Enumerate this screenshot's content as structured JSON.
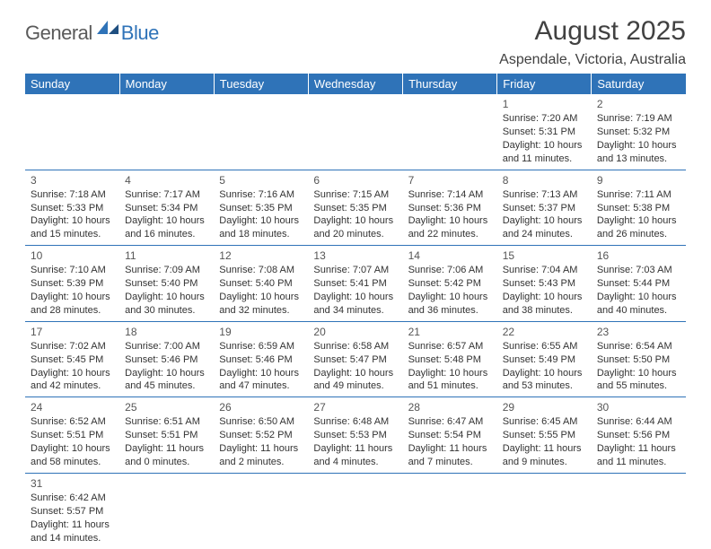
{
  "brand": {
    "word1": "General",
    "word2": "Blue",
    "color1": "#5a5a5a",
    "color2": "#2f73b8"
  },
  "title": "August 2025",
  "location": "Aspendale, Victoria, Australia",
  "colors": {
    "header_bg": "#2f73b8",
    "header_fg": "#ffffff",
    "rule": "#2f73b8",
    "text": "#333333"
  },
  "weekdays": [
    "Sunday",
    "Monday",
    "Tuesday",
    "Wednesday",
    "Thursday",
    "Friday",
    "Saturday"
  ],
  "weeks": [
    [
      null,
      null,
      null,
      null,
      null,
      {
        "n": "1",
        "sr": "Sunrise: 7:20 AM",
        "ss": "Sunset: 5:31 PM",
        "d1": "Daylight: 10 hours",
        "d2": "and 11 minutes."
      },
      {
        "n": "2",
        "sr": "Sunrise: 7:19 AM",
        "ss": "Sunset: 5:32 PM",
        "d1": "Daylight: 10 hours",
        "d2": "and 13 minutes."
      }
    ],
    [
      {
        "n": "3",
        "sr": "Sunrise: 7:18 AM",
        "ss": "Sunset: 5:33 PM",
        "d1": "Daylight: 10 hours",
        "d2": "and 15 minutes."
      },
      {
        "n": "4",
        "sr": "Sunrise: 7:17 AM",
        "ss": "Sunset: 5:34 PM",
        "d1": "Daylight: 10 hours",
        "d2": "and 16 minutes."
      },
      {
        "n": "5",
        "sr": "Sunrise: 7:16 AM",
        "ss": "Sunset: 5:35 PM",
        "d1": "Daylight: 10 hours",
        "d2": "and 18 minutes."
      },
      {
        "n": "6",
        "sr": "Sunrise: 7:15 AM",
        "ss": "Sunset: 5:35 PM",
        "d1": "Daylight: 10 hours",
        "d2": "and 20 minutes."
      },
      {
        "n": "7",
        "sr": "Sunrise: 7:14 AM",
        "ss": "Sunset: 5:36 PM",
        "d1": "Daylight: 10 hours",
        "d2": "and 22 minutes."
      },
      {
        "n": "8",
        "sr": "Sunrise: 7:13 AM",
        "ss": "Sunset: 5:37 PM",
        "d1": "Daylight: 10 hours",
        "d2": "and 24 minutes."
      },
      {
        "n": "9",
        "sr": "Sunrise: 7:11 AM",
        "ss": "Sunset: 5:38 PM",
        "d1": "Daylight: 10 hours",
        "d2": "and 26 minutes."
      }
    ],
    [
      {
        "n": "10",
        "sr": "Sunrise: 7:10 AM",
        "ss": "Sunset: 5:39 PM",
        "d1": "Daylight: 10 hours",
        "d2": "and 28 minutes."
      },
      {
        "n": "11",
        "sr": "Sunrise: 7:09 AM",
        "ss": "Sunset: 5:40 PM",
        "d1": "Daylight: 10 hours",
        "d2": "and 30 minutes."
      },
      {
        "n": "12",
        "sr": "Sunrise: 7:08 AM",
        "ss": "Sunset: 5:40 PM",
        "d1": "Daylight: 10 hours",
        "d2": "and 32 minutes."
      },
      {
        "n": "13",
        "sr": "Sunrise: 7:07 AM",
        "ss": "Sunset: 5:41 PM",
        "d1": "Daylight: 10 hours",
        "d2": "and 34 minutes."
      },
      {
        "n": "14",
        "sr": "Sunrise: 7:06 AM",
        "ss": "Sunset: 5:42 PM",
        "d1": "Daylight: 10 hours",
        "d2": "and 36 minutes."
      },
      {
        "n": "15",
        "sr": "Sunrise: 7:04 AM",
        "ss": "Sunset: 5:43 PM",
        "d1": "Daylight: 10 hours",
        "d2": "and 38 minutes."
      },
      {
        "n": "16",
        "sr": "Sunrise: 7:03 AM",
        "ss": "Sunset: 5:44 PM",
        "d1": "Daylight: 10 hours",
        "d2": "and 40 minutes."
      }
    ],
    [
      {
        "n": "17",
        "sr": "Sunrise: 7:02 AM",
        "ss": "Sunset: 5:45 PM",
        "d1": "Daylight: 10 hours",
        "d2": "and 42 minutes."
      },
      {
        "n": "18",
        "sr": "Sunrise: 7:00 AM",
        "ss": "Sunset: 5:46 PM",
        "d1": "Daylight: 10 hours",
        "d2": "and 45 minutes."
      },
      {
        "n": "19",
        "sr": "Sunrise: 6:59 AM",
        "ss": "Sunset: 5:46 PM",
        "d1": "Daylight: 10 hours",
        "d2": "and 47 minutes."
      },
      {
        "n": "20",
        "sr": "Sunrise: 6:58 AM",
        "ss": "Sunset: 5:47 PM",
        "d1": "Daylight: 10 hours",
        "d2": "and 49 minutes."
      },
      {
        "n": "21",
        "sr": "Sunrise: 6:57 AM",
        "ss": "Sunset: 5:48 PM",
        "d1": "Daylight: 10 hours",
        "d2": "and 51 minutes."
      },
      {
        "n": "22",
        "sr": "Sunrise: 6:55 AM",
        "ss": "Sunset: 5:49 PM",
        "d1": "Daylight: 10 hours",
        "d2": "and 53 minutes."
      },
      {
        "n": "23",
        "sr": "Sunrise: 6:54 AM",
        "ss": "Sunset: 5:50 PM",
        "d1": "Daylight: 10 hours",
        "d2": "and 55 minutes."
      }
    ],
    [
      {
        "n": "24",
        "sr": "Sunrise: 6:52 AM",
        "ss": "Sunset: 5:51 PM",
        "d1": "Daylight: 10 hours",
        "d2": "and 58 minutes."
      },
      {
        "n": "25",
        "sr": "Sunrise: 6:51 AM",
        "ss": "Sunset: 5:51 PM",
        "d1": "Daylight: 11 hours",
        "d2": "and 0 minutes."
      },
      {
        "n": "26",
        "sr": "Sunrise: 6:50 AM",
        "ss": "Sunset: 5:52 PM",
        "d1": "Daylight: 11 hours",
        "d2": "and 2 minutes."
      },
      {
        "n": "27",
        "sr": "Sunrise: 6:48 AM",
        "ss": "Sunset: 5:53 PM",
        "d1": "Daylight: 11 hours",
        "d2": "and 4 minutes."
      },
      {
        "n": "28",
        "sr": "Sunrise: 6:47 AM",
        "ss": "Sunset: 5:54 PM",
        "d1": "Daylight: 11 hours",
        "d2": "and 7 minutes."
      },
      {
        "n": "29",
        "sr": "Sunrise: 6:45 AM",
        "ss": "Sunset: 5:55 PM",
        "d1": "Daylight: 11 hours",
        "d2": "and 9 minutes."
      },
      {
        "n": "30",
        "sr": "Sunrise: 6:44 AM",
        "ss": "Sunset: 5:56 PM",
        "d1": "Daylight: 11 hours",
        "d2": "and 11 minutes."
      }
    ],
    [
      {
        "n": "31",
        "sr": "Sunrise: 6:42 AM",
        "ss": "Sunset: 5:57 PM",
        "d1": "Daylight: 11 hours",
        "d2": "and 14 minutes."
      },
      null,
      null,
      null,
      null,
      null,
      null
    ]
  ]
}
